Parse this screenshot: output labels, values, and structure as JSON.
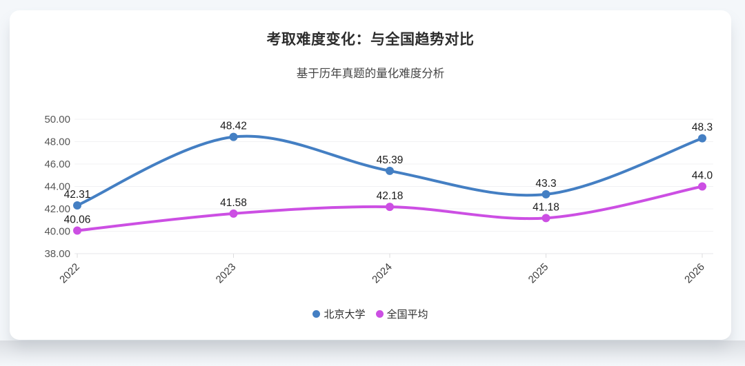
{
  "page": {
    "background_color": "#f4f7fa",
    "card_color": "#ffffff"
  },
  "header": {
    "title": "考取难度变化：与全国趋势对比",
    "subtitle": "基于历年真题的量化难度分析"
  },
  "chart_data": {
    "type": "line",
    "title": "考取难度变化：与全国趋势对比",
    "subtitle": "基于历年真题的量化难度分析",
    "categories": [
      "2022",
      "2023",
      "2024",
      "2025",
      "2026"
    ],
    "series": [
      {
        "name": "北京大学",
        "color": "#447fc3",
        "values": [
          42.31,
          48.42,
          45.39,
          43.3,
          48.3
        ],
        "point_labels": [
          "42.31",
          "48.42",
          "45.39",
          "43.3",
          "48.3"
        ]
      },
      {
        "name": "全国平均",
        "color": "#cc4fe3",
        "values": [
          40.06,
          41.58,
          42.18,
          41.18,
          44.0
        ],
        "point_labels": [
          "40.06",
          "41.58",
          "42.18",
          "41.18",
          "44.0"
        ]
      }
    ],
    "xlabel": "",
    "ylabel": "",
    "ylim": [
      38,
      50
    ],
    "y_ticks": [
      "50.00",
      "48.00",
      "46.00",
      "44.00",
      "42.00",
      "40.00",
      "38.00"
    ],
    "grid": true,
    "grid_color": "#f1f1f3",
    "axis_color": "#e6e6e8",
    "tick_label_color": "#565656",
    "x_label_color": "#3d3d3d",
    "point_label_color": "#1a1a1a",
    "legend_position": "bottom",
    "line_style": "smooth"
  }
}
